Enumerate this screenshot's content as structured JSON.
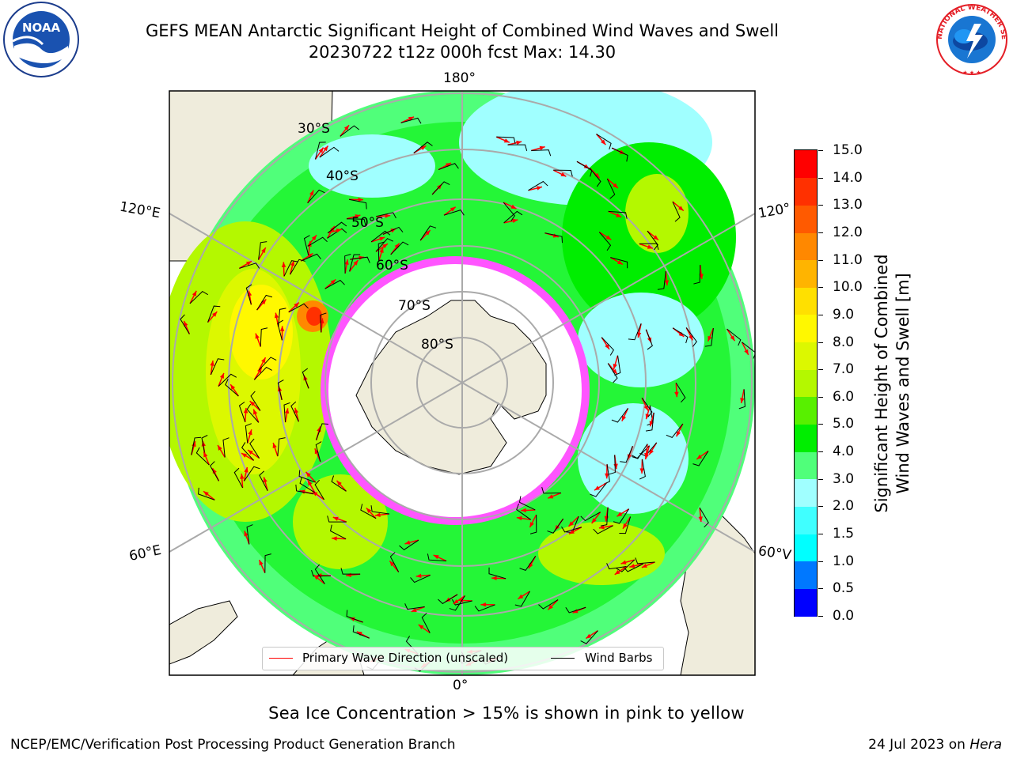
{
  "header": {
    "title_line1": "GEFS MEAN Antarctic Significant Height of Combined Wind Waves and Swell",
    "title_line2": "20230722 t12z 000h fcst   Max: 14.30"
  },
  "logos": {
    "left": "NOAA",
    "right": "NATIONAL WEATHER SERVICE"
  },
  "map": {
    "longitude_labels": {
      "top": "180°",
      "bottom": "0°",
      "left_upper": "120°E",
      "left_lower": "60°E",
      "right_upper": "120°",
      "right_lower": "60°V"
    },
    "latitude_labels": [
      "30°S",
      "40°S",
      "50°S",
      "60°S",
      "70°S",
      "80°S"
    ],
    "colors": {
      "land": "#efecdc",
      "ocean_no_data": "#ffffff",
      "sea_ice": "#ff55ff",
      "wave_arrow": "#ff0000",
      "wind_barb": "#000000",
      "grid": "#aaaaaa"
    }
  },
  "colorbar": {
    "title_line1": "Significant Height of Combined",
    "title_line2": "Wind Waves and Swell [m]",
    "tick_labels": [
      "0.0",
      "0.5",
      "1.0",
      "1.5",
      "2.0",
      "3.0",
      "4.0",
      "5.0",
      "6.0",
      "7.0",
      "8.0",
      "9.0",
      "10.0",
      "11.0",
      "12.0",
      "13.0",
      "14.0",
      "15.0"
    ],
    "colors": [
      "#0000ff",
      "#0078ff",
      "#00ffff",
      "#40ffff",
      "#a0ffff",
      "#50ff7a",
      "#00ee00",
      "#58f000",
      "#b4f800",
      "#dcf800",
      "#fff800",
      "#ffe000",
      "#ffb400",
      "#ff8800",
      "#ff5a00",
      "#ff3000",
      "#ff0000"
    ]
  },
  "legend": {
    "item1": "Primary Wave Direction (unscaled)",
    "item2": "Wind Barbs"
  },
  "caption": "Sea Ice Concentration > 15% is shown in pink to yellow",
  "footer": {
    "left": "NCEP/EMC/Verification Post Processing Product Generation Branch",
    "right_text": "24 Jul 2023 on ",
    "right_italic": "Hera"
  }
}
